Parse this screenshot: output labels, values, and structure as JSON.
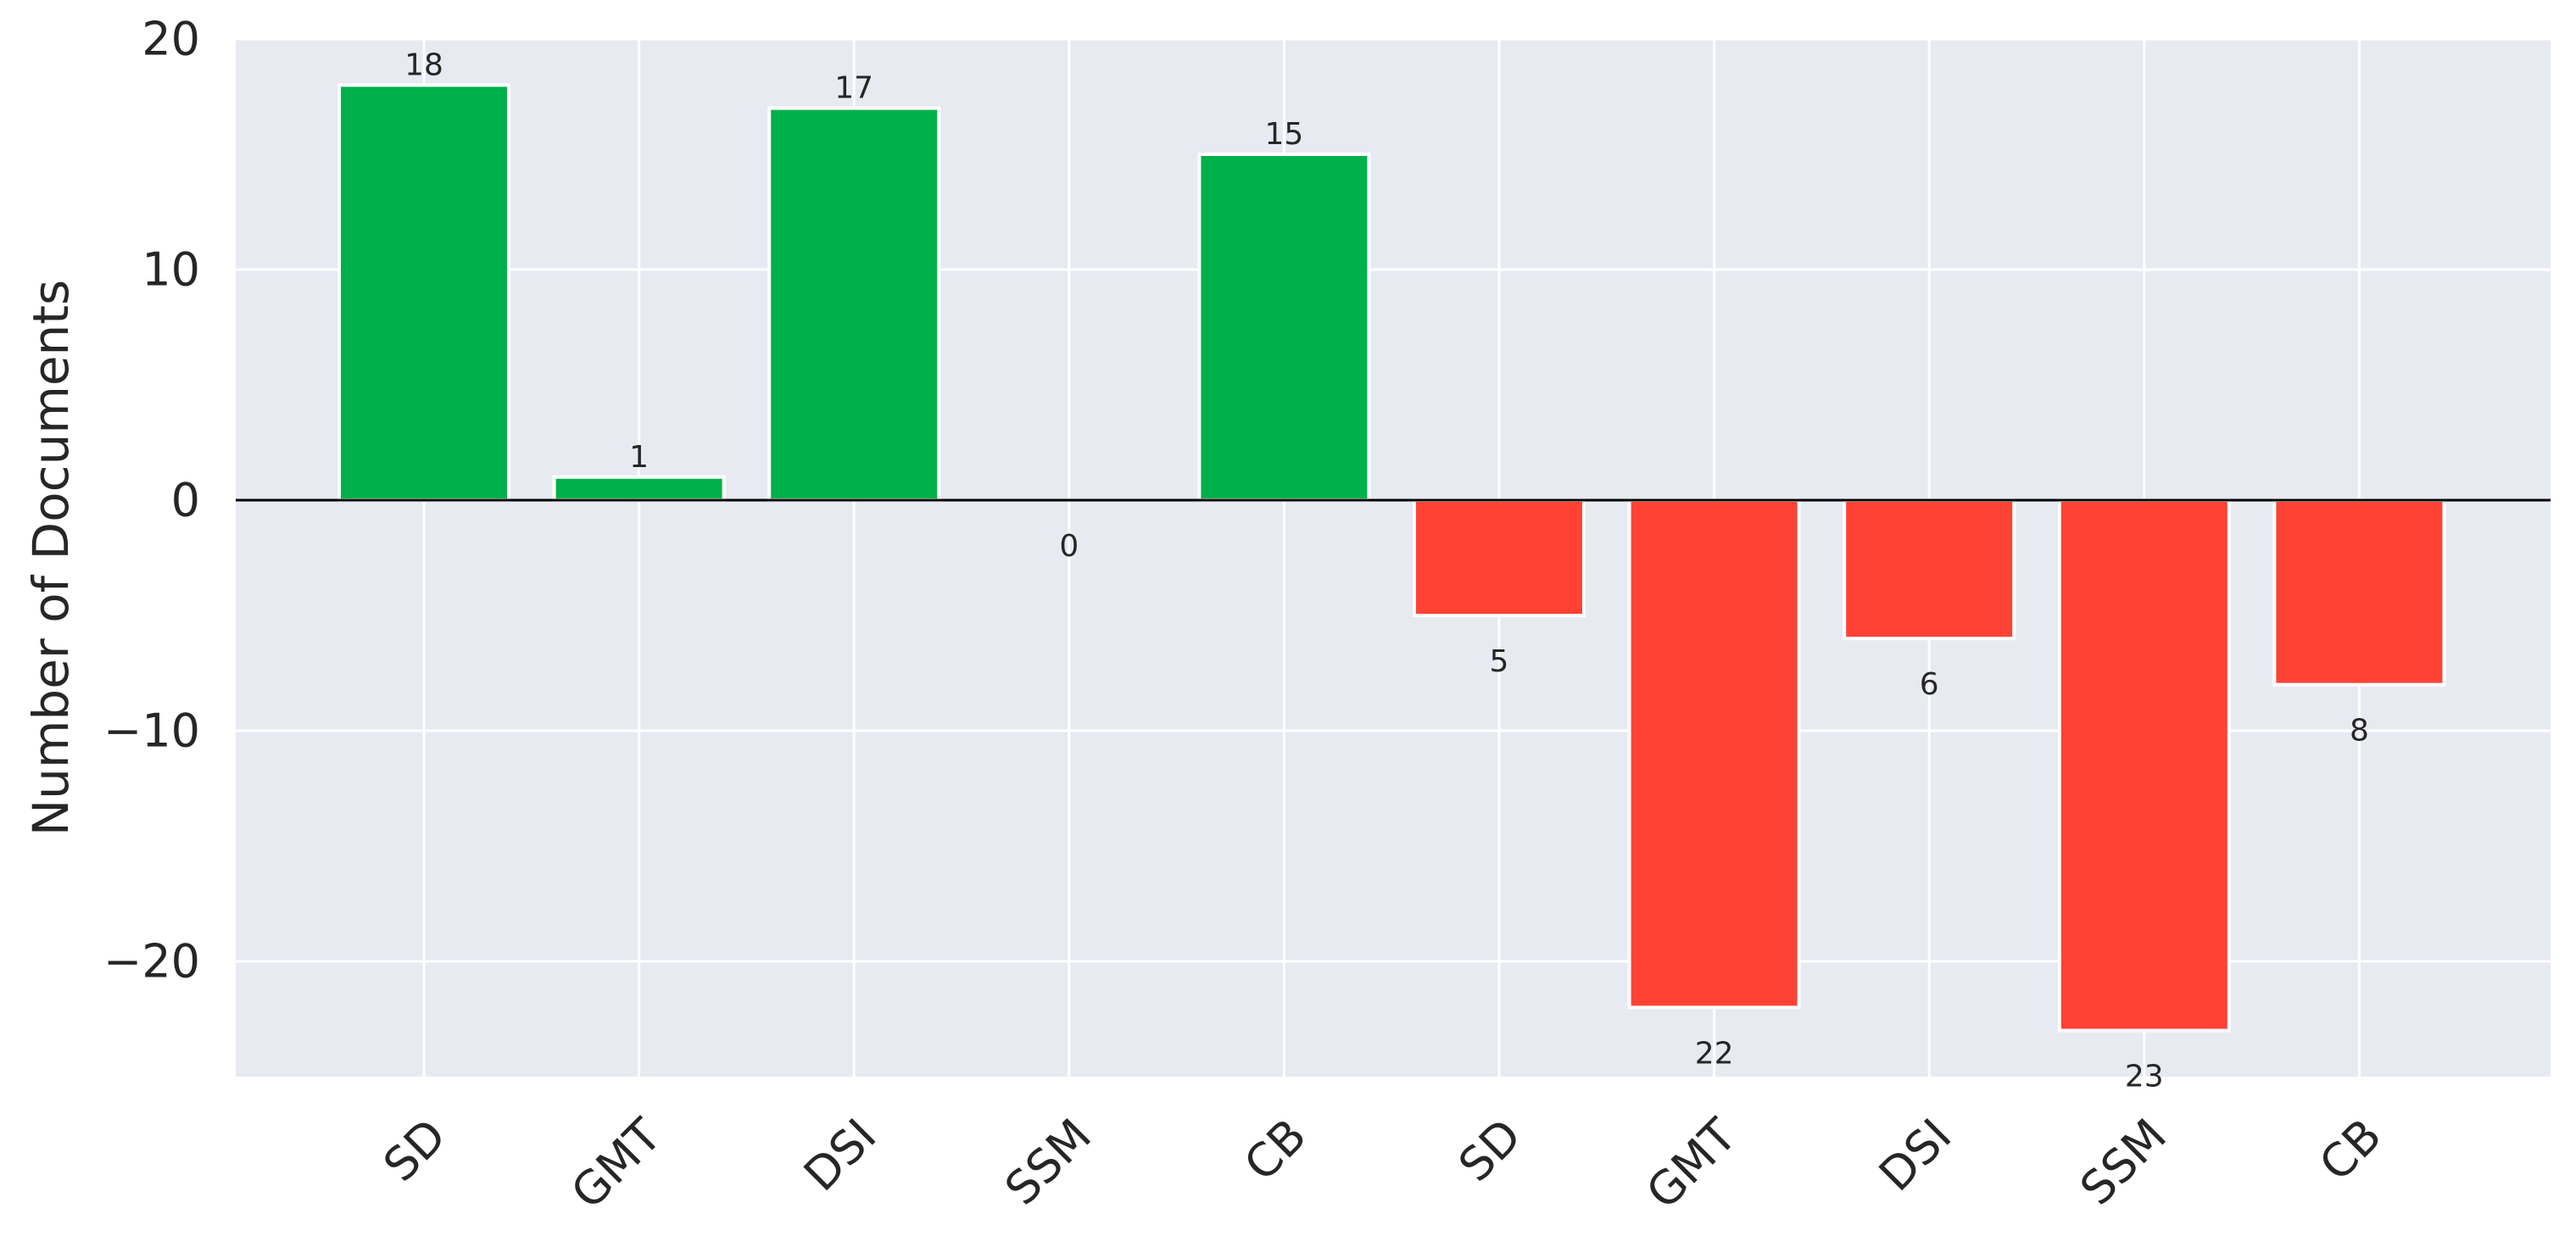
{
  "chart_data": {
    "type": "bar",
    "title": "",
    "xlabel": "",
    "ylabel": "Number of Documents",
    "categories": [
      "SD",
      "GMT",
      "DSI",
      "SSM",
      "CB",
      "SD",
      "GMT",
      "DSI",
      "SSM",
      "CB"
    ],
    "values": [
      18,
      1,
      17,
      0,
      15,
      -5,
      -22,
      -6,
      -23,
      -8
    ],
    "data_labels": [
      "18",
      "1",
      "17",
      "0",
      "15",
      "5",
      "22",
      "6",
      "23",
      "8"
    ],
    "ylim": [
      -25,
      20
    ],
    "yticks": [
      -20,
      -10,
      0,
      10,
      20
    ],
    "ytick_labels": [
      "−20",
      "−10",
      "0",
      "10",
      "20"
    ],
    "grid": true,
    "colors": {
      "positive": "#00B04A",
      "negative": "#FF4234",
      "background": "#E8EAF2",
      "grid": "#FFFFFF",
      "zero_line": "#000000"
    }
  }
}
